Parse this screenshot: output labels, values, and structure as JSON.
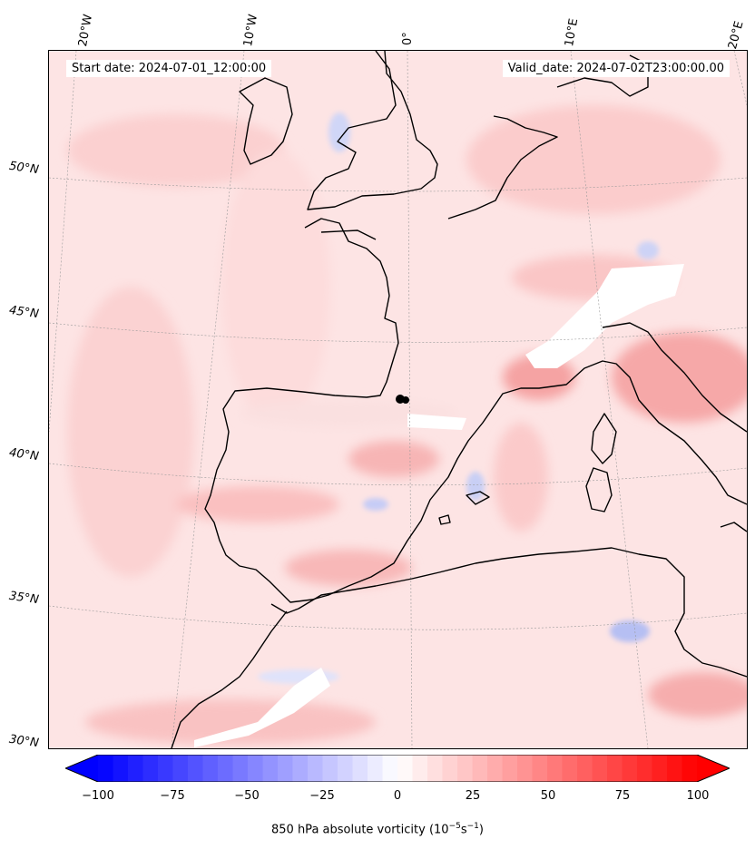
{
  "header": {
    "start_date": "Start date: 2024-07-01_12:00:00",
    "valid_date": "Valid_date: 2024-07-02T23:00:00.00"
  },
  "map": {
    "longitude_labels": [
      "20°W",
      "10°W",
      "0°",
      "10°E",
      "20°E"
    ],
    "latitude_labels": [
      "50°N",
      "45°N",
      "40°N",
      "35°N",
      "30°N"
    ],
    "features": [
      "coastlines",
      "gridlines",
      "vorticity-field"
    ]
  },
  "colorbar": {
    "ticks": [
      "−100",
      "−75",
      "−50",
      "−25",
      "0",
      "25",
      "50",
      "75",
      "100"
    ],
    "label_prefix": "850 hPa absolute vorticity (10",
    "label_exp1": "−5",
    "label_mid": "s",
    "label_exp2": "−1",
    "label_suffix": ")",
    "colors": {
      "negative": "#0000ff",
      "zero": "#ffffff",
      "positive": "#ff0000"
    }
  }
}
